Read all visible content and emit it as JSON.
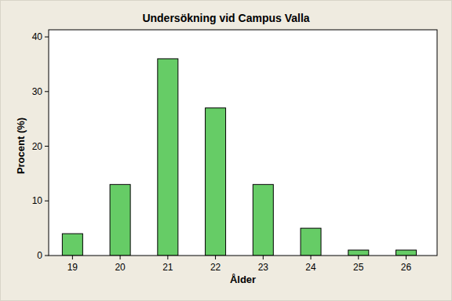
{
  "chart_data": {
    "type": "bar",
    "title": "Undersökning vid Campus Valla",
    "x_label": "Ålder",
    "y_label": "Procent (%)",
    "categories": [
      "19",
      "20",
      "21",
      "22",
      "23",
      "24",
      "25",
      "26"
    ],
    "values": [
      4,
      13,
      36,
      27,
      13,
      5,
      1,
      1
    ],
    "color": "#66cc66",
    "ylim": [
      0,
      41.3
    ],
    "yticks": [
      0,
      10,
      20,
      30,
      40
    ],
    "grid": false
  }
}
